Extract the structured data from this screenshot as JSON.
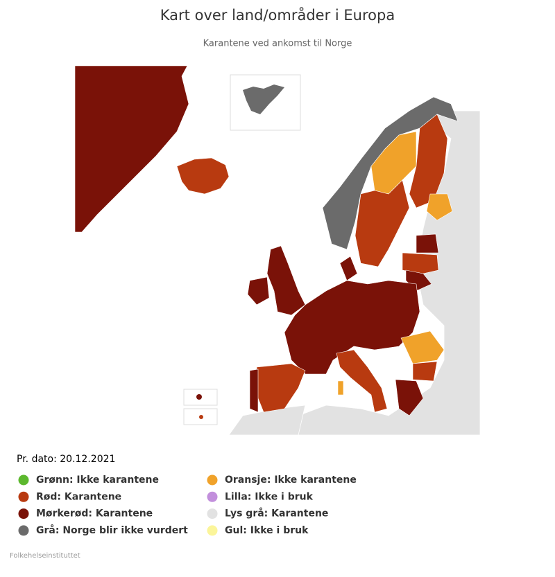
{
  "title": "Kart over land/områder i Europa",
  "subtitle": "Karantene ved ankomst til Norge",
  "date_label": "Pr. dato: 20.12.2021",
  "legend": [
    {
      "label": "Grønn: Ikke karantene",
      "color": "#5cb82e"
    },
    {
      "label": "Rød: Karantene",
      "color": "#b83a10"
    },
    {
      "label": "Mørkerød: Karantene",
      "color": "#7a1208"
    },
    {
      "label": "Grå: Norge blir ikke vurdert",
      "color": "#6b6b6b"
    },
    {
      "label": "Oransje: Ikke karantene",
      "color": "#f0a22a"
    },
    {
      "label": "Lilla: Ikke i bruk",
      "color": "#c28fdc"
    },
    {
      "label": "Lys grå: Karantene",
      "color": "#e2e2e2"
    },
    {
      "label": "Gul: Ikke i bruk",
      "color": "#fbf59a"
    }
  ],
  "credit": "Folkehelseinstituttet"
}
